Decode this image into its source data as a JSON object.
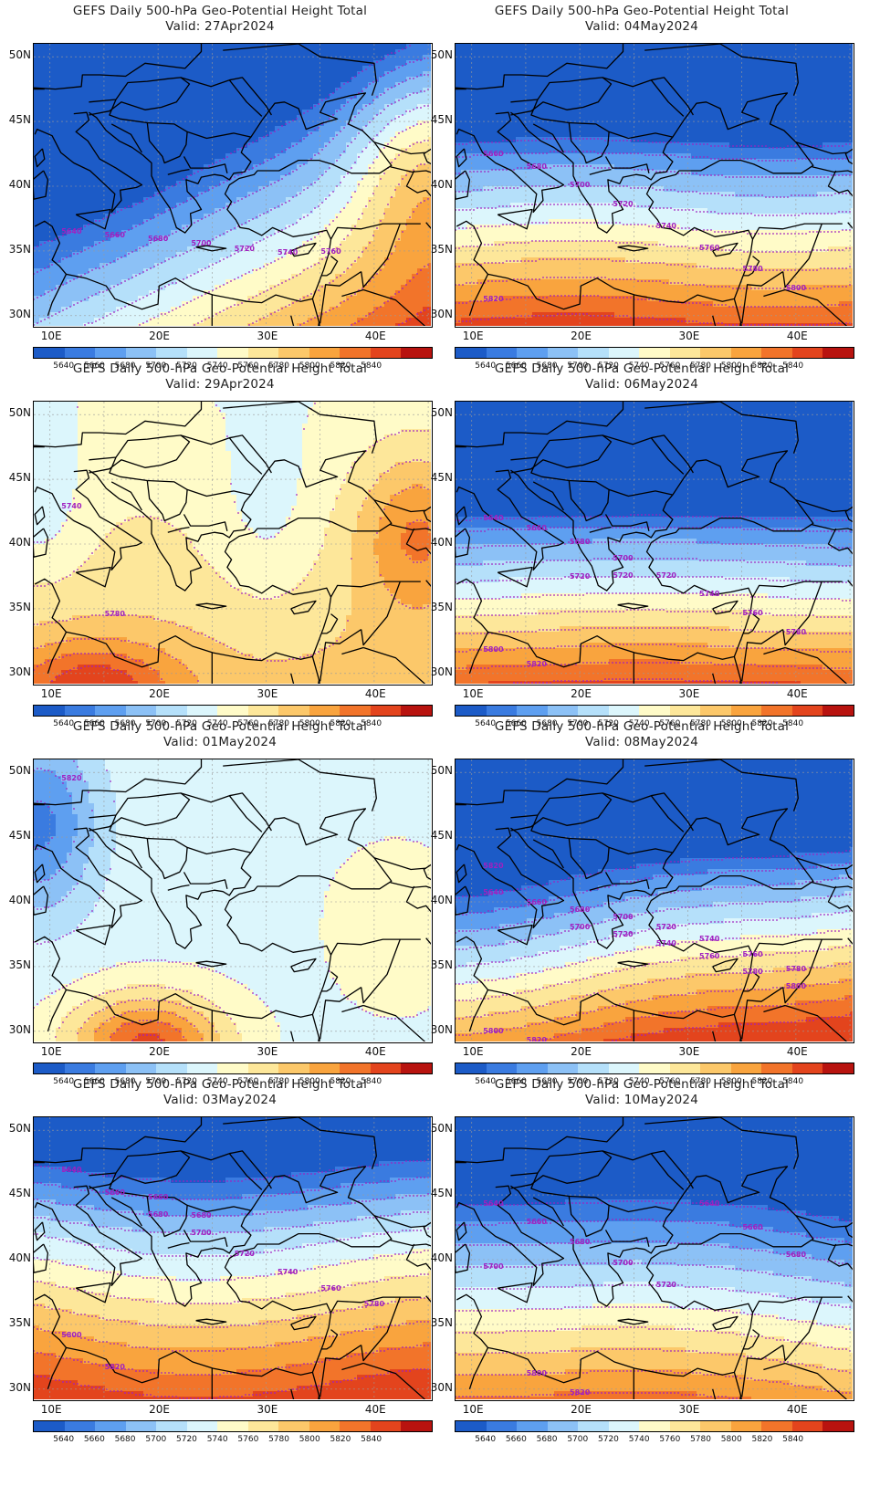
{
  "panels": [
    {
      "line1": "GEFS Daily 500-hPa Geo-Potential Height Total",
      "line2": "Valid: 27Apr2024",
      "field": "p1",
      "contour_labels": [
        "5640",
        "5660",
        "5680",
        "5700",
        "5720",
        "5740",
        "5760"
      ]
    },
    {
      "line1": "GEFS Daily 500-hPa Geo-Potential Height Total",
      "line2": "Valid: 29Apr2024",
      "field": "p2",
      "contour_labels": [
        "5740",
        "5780"
      ]
    },
    {
      "line1": "GEFS Daily 500-hPa Geo-Potential Height Total",
      "line2": "Valid: 01May2024",
      "field": "p3",
      "contour_labels": [
        "5820"
      ]
    },
    {
      "line1": "GEFS Daily 500-hPa Geo-Potential Height Total",
      "line2": "Valid: 03May2024",
      "field": "p4",
      "contour_labels": [
        "5640",
        "5660",
        "5680",
        "5700",
        "5720",
        "5740",
        "5760",
        "5780",
        "5800",
        "5820",
        "5660",
        "5680"
      ]
    },
    {
      "line1": "GEFS Daily 500-hPa Geo-Potential Height Total",
      "line2": "Valid: 04May2024",
      "field": "p5",
      "contour_labels": [
        "5660",
        "5680",
        "5700",
        "5720",
        "5740",
        "5760",
        "5780",
        "5800",
        "5820"
      ]
    },
    {
      "line1": "GEFS Daily 500-hPa Geo-Potential Height Total",
      "line2": "Valid: 06May2024",
      "field": "p6",
      "contour_labels": [
        "5640",
        "5660",
        "5680",
        "5700",
        "5720",
        "5740",
        "5760",
        "5780",
        "5800",
        "5820",
        "5720",
        "5720"
      ]
    },
    {
      "line1": "GEFS Daily 500-hPa Geo-Potential Height Total",
      "line2": "Valid: 08May2024",
      "field": "p7",
      "contour_labels": [
        "5640",
        "5660",
        "5680",
        "5700",
        "5720",
        "5740",
        "5760",
        "5780",
        "5800",
        "5820",
        "5700",
        "5720",
        "5740",
        "5760",
        "5780",
        "5800",
        "5820"
      ]
    },
    {
      "line1": "GEFS Daily 500-hPa Geo-Potential Height Total",
      "line2": "Valid: 10May2024",
      "field": "p8",
      "contour_labels": [
        "5640",
        "5660",
        "5680",
        "5700",
        "5720",
        "5640",
        "5660",
        "5680",
        "5700",
        "5800",
        "5820"
      ]
    }
  ],
  "lat_labels": [
    "50N",
    "45N",
    "40N",
    "35N",
    "30N"
  ],
  "lon_labels": [
    "10E",
    "20E",
    "30E",
    "40E"
  ],
  "colorbar": {
    "colors": [
      "#1c5bc7",
      "#3a7be0",
      "#5e9ff0",
      "#8cc1f6",
      "#b5e0fa",
      "#dcf6fc",
      "#fffbc8",
      "#fde79a",
      "#fcc86a",
      "#f9a43e",
      "#f2742a",
      "#e3441d",
      "#b8130f"
    ],
    "labels": [
      "5640",
      "5660",
      "5680",
      "5700",
      "5720",
      "5740",
      "5760",
      "5780",
      "5800",
      "5820",
      "5840"
    ]
  },
  "contour_color": "#a020c0"
}
